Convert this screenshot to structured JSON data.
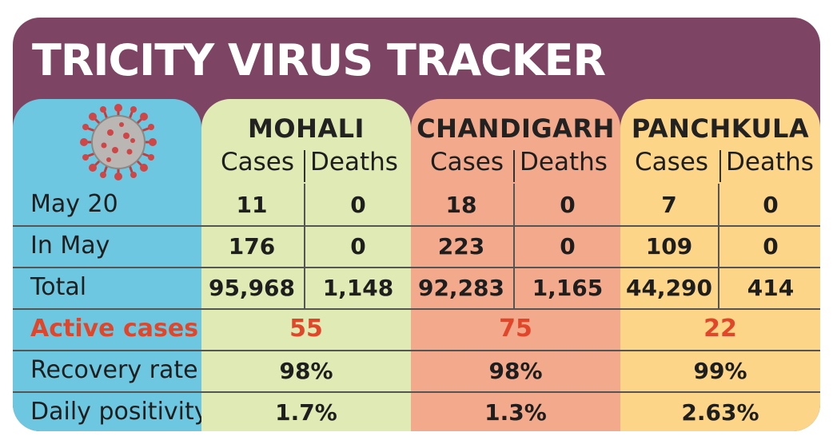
{
  "title": "TRICITY VIRUS TRACKER",
  "colors": {
    "background": "#7d4563",
    "label_panel": "#6ec7e0",
    "mohali_panel": "#dfeab4",
    "chandigarh_panel": "#f3aa8c",
    "panchkula_panel": "#fcd588",
    "highlight": "#e2462a"
  },
  "icon": "coronavirus-icon",
  "sub_headers": {
    "cases": "Cases",
    "deaths": "Deaths"
  },
  "rows": {
    "may20": "May 20",
    "in_may": "In May",
    "total": "Total",
    "active": "Active cases",
    "recovery": "Recovery rate",
    "positivity": "Daily positivity"
  },
  "cities": [
    {
      "name": "MOHALI",
      "may20_cases": "11",
      "may20_deaths": "0",
      "inmay_cases": "176",
      "inmay_deaths": "0",
      "total_cases": "95,968",
      "total_deaths": "1,148",
      "active": "55",
      "recovery": "98%",
      "positivity": "1.7%"
    },
    {
      "name": "CHANDIGARH",
      "may20_cases": "18",
      "may20_deaths": "0",
      "inmay_cases": "223",
      "inmay_deaths": "0",
      "total_cases": "92,283",
      "total_deaths": "1,165",
      "active": "75",
      "recovery": "98%",
      "positivity": "1.3%"
    },
    {
      "name": "PANCHKULA",
      "may20_cases": "7",
      "may20_deaths": "0",
      "inmay_cases": "109",
      "inmay_deaths": "0",
      "total_cases": "44,290",
      "total_deaths": "414",
      "active": "22",
      "recovery": "99%",
      "positivity": "2.63%"
    }
  ]
}
